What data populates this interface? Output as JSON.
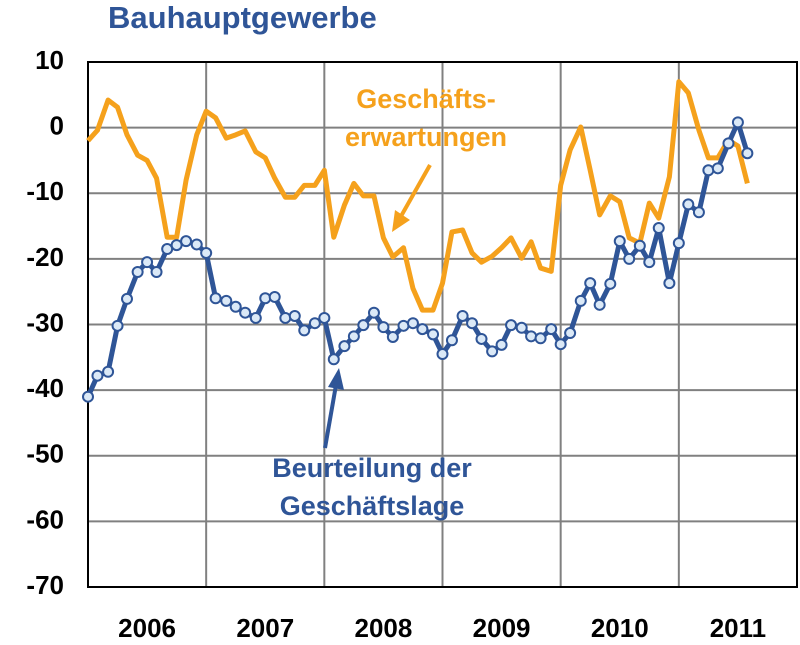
{
  "chart_data": {
    "type": "line",
    "title": "Bauhauptgewerbe",
    "x": [
      2006,
      2006.08,
      2006.17,
      2006.25,
      2006.33,
      2006.42,
      2006.5,
      2006.58,
      2006.67,
      2006.75,
      2006.83,
      2006.92,
      2007,
      2007.08,
      2007.17,
      2007.25,
      2007.33,
      2007.42,
      2007.5,
      2007.58,
      2007.67,
      2007.75,
      2007.83,
      2007.92,
      2008,
      2008.08,
      2008.17,
      2008.25,
      2008.33,
      2008.42,
      2008.5,
      2008.58,
      2008.67,
      2008.75,
      2008.83,
      2008.92,
      2009,
      2009.08,
      2009.17,
      2009.25,
      2009.33,
      2009.42,
      2009.5,
      2009.58,
      2009.67,
      2009.75,
      2009.83,
      2009.92,
      2010,
      2010.08,
      2010.17,
      2010.25,
      2010.33,
      2010.42,
      2010.5,
      2010.58,
      2010.67,
      2010.75,
      2010.83,
      2010.92,
      2011,
      2011.08,
      2011.17,
      2011.25,
      2011.33,
      2011.42,
      2011.5,
      2011.58
    ],
    "series": [
      {
        "name": "Geschäftserwartungen",
        "color": "#f5a11c",
        "markers": false,
        "values": [
          -2,
          -0.4,
          4.2,
          3.1,
          -1.1,
          -4.2,
          -5,
          -7.7,
          -16.7,
          -16.7,
          -8,
          -1.1,
          2.5,
          1.5,
          -1.6,
          -1.1,
          -0.5,
          -3.7,
          -4.6,
          -7.7,
          -10.6,
          -10.6,
          -8.8,
          -8.8,
          -6.5,
          -16.7,
          -11.8,
          -8.5,
          -10.4,
          -10.4,
          -16.8,
          -19.7,
          -18.3,
          -24.5,
          -27.8,
          -27.8,
          -23.7,
          -15.9,
          -15.6,
          -19.1,
          -20.5,
          -19.6,
          -18.3,
          -16.8,
          -19.9,
          -17.4,
          -21.4,
          -21.9,
          -8.8,
          -3.4,
          0.1,
          -6.5,
          -13.3,
          -10.4,
          -11.3,
          -16.8,
          -17.6,
          -11.5,
          -13.8,
          -7.5,
          7,
          5.3,
          -0.4,
          -4.6,
          -4.6,
          -1.9,
          -2.8,
          -8.5
        ]
      },
      {
        "name": "Beurteilung der Geschäftslage",
        "color": "#2f5597",
        "markers": true,
        "marker_fill": "#dbe9f7",
        "values": [
          -41,
          -37.8,
          -37.2,
          -30.2,
          -26.1,
          -22,
          -20.5,
          -22,
          -18.5,
          -17.9,
          -17.3,
          -17.8,
          -19.1,
          -26,
          -26.4,
          -27.3,
          -28.2,
          -29,
          -26,
          -25.8,
          -29,
          -28.7,
          -30.9,
          -29.8,
          -29,
          -35.3,
          -33.3,
          -31.8,
          -30.1,
          -28.2,
          -30.4,
          -31.9,
          -30.2,
          -29.8,
          -30.7,
          -31.5,
          -34.5,
          -32.4,
          -28.7,
          -29.8,
          -32.2,
          -34.1,
          -33.1,
          -30.1,
          -30.5,
          -31.8,
          -32.1,
          -30.7,
          -33,
          -31.3,
          -26.4,
          -23.7,
          -27,
          -23.8,
          -17.3,
          -20,
          -18,
          -20.5,
          -15.3,
          -23.7,
          -17.6,
          -11.7,
          -12.9,
          -6.5,
          -6.2,
          -2.4,
          0.8,
          -3.9
        ]
      }
    ],
    "annotations": [
      [
        "Geschäfts-",
        "erwartungen"
      ],
      [
        "Beurteilung der",
        "Geschäftslage"
      ]
    ],
    "xlim": [
      2006,
      2012
    ],
    "xticks": [
      {
        "value": 2006.5,
        "label": "2006"
      },
      {
        "value": 2007.5,
        "label": "2007"
      },
      {
        "value": 2008.5,
        "label": "2008"
      },
      {
        "value": 2009.5,
        "label": "2009"
      },
      {
        "value": 2010.5,
        "label": "2010"
      },
      {
        "value": 2011.5,
        "label": "2011"
      }
    ],
    "xgrid": [
      2007,
      2008,
      2009,
      2010,
      2011
    ],
    "ylim": [
      -70,
      10
    ],
    "yticks": [
      10,
      0,
      -10,
      -20,
      -30,
      -40,
      -50,
      -60,
      -70
    ],
    "grid": true
  }
}
